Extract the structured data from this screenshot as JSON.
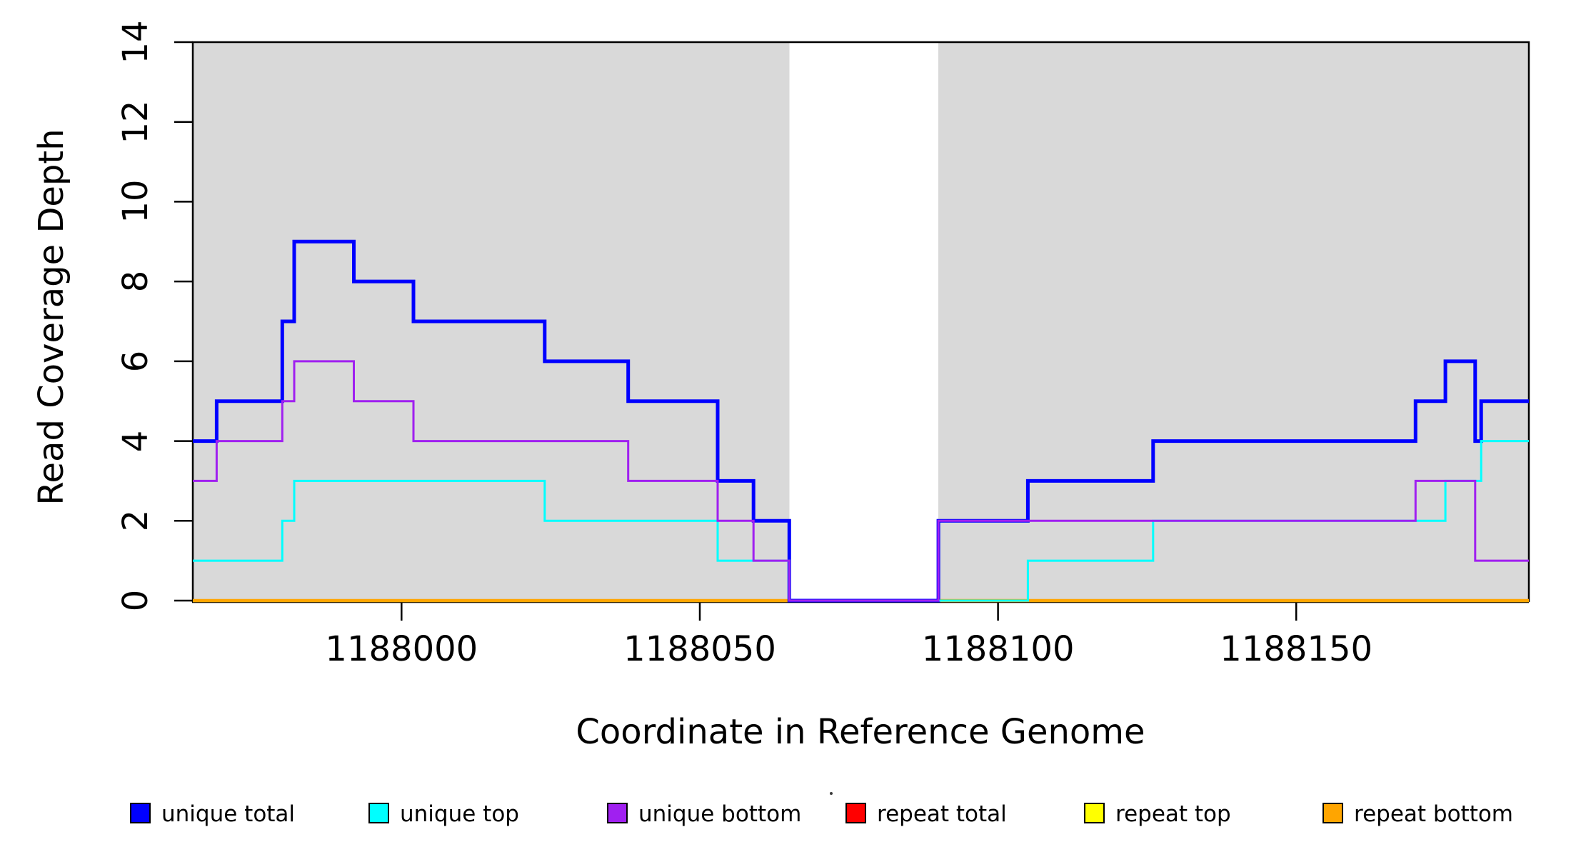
{
  "chart_data": {
    "type": "line",
    "subtype": "step-after",
    "title": "",
    "xlabel": "Coordinate in Reference Genome",
    "ylabel": "Read Coverage Depth",
    "xlim": [
      1187965,
      1188189
    ],
    "ylim": [
      0,
      14
    ],
    "x_ticks": [
      1188000,
      1188050,
      1188100,
      1188150
    ],
    "y_ticks": [
      0,
      2,
      4,
      6,
      8,
      10,
      12,
      14
    ],
    "grid": false,
    "legend_position": "bottom-horizontal",
    "plot_background": "#ffffff",
    "region_color": "#d9d9d9",
    "background_regions": [
      {
        "start": 1187965,
        "end": 1188065
      },
      {
        "start": 1188090,
        "end": 1188189
      }
    ],
    "series": [
      {
        "name": "unique total",
        "color": "#0000ff",
        "width": 5,
        "steps": [
          [
            1187965,
            4
          ],
          [
            1187969,
            5
          ],
          [
            1187980,
            7
          ],
          [
            1187982,
            9
          ],
          [
            1187992,
            8
          ],
          [
            1188002,
            7
          ],
          [
            1188024,
            6
          ],
          [
            1188038,
            5
          ],
          [
            1188053,
            3
          ],
          [
            1188059,
            2
          ],
          [
            1188065,
            0
          ],
          [
            1188090,
            2
          ],
          [
            1188105,
            3
          ],
          [
            1188126,
            4
          ],
          [
            1188170,
            5
          ],
          [
            1188175,
            6
          ],
          [
            1188180,
            4
          ],
          [
            1188181,
            5
          ]
        ]
      },
      {
        "name": "unique top",
        "color": "#00ffff",
        "width": 3,
        "steps": [
          [
            1187965,
            1
          ],
          [
            1187980,
            2
          ],
          [
            1187982,
            3
          ],
          [
            1188024,
            2
          ],
          [
            1188053,
            1
          ],
          [
            1188065,
            0
          ],
          [
            1188105,
            1
          ],
          [
            1188126,
            2
          ],
          [
            1188175,
            3
          ],
          [
            1188181,
            4
          ]
        ]
      },
      {
        "name": "unique bottom",
        "color": "#a020f0",
        "width": 3,
        "steps": [
          [
            1187965,
            3
          ],
          [
            1187969,
            4
          ],
          [
            1187980,
            5
          ],
          [
            1187982,
            6
          ],
          [
            1187992,
            5
          ],
          [
            1188002,
            4
          ],
          [
            1188038,
            3
          ],
          [
            1188053,
            2
          ],
          [
            1188059,
            1
          ],
          [
            1188065,
            0
          ],
          [
            1188090,
            2
          ],
          [
            1188170,
            3
          ],
          [
            1188180,
            1
          ]
        ]
      },
      {
        "name": "repeat total",
        "color": "#ff0000",
        "width": 3.5,
        "steps": [
          [
            1187965,
            0
          ]
        ]
      },
      {
        "name": "repeat top",
        "color": "#ffff00",
        "width": 3.5,
        "steps": [
          [
            1187965,
            0
          ]
        ]
      },
      {
        "name": "repeat bottom",
        "color": "#ffa500",
        "width": 4.5,
        "steps": [
          [
            1187965,
            0
          ]
        ]
      }
    ],
    "draw_order": [
      "repeat total",
      "repeat top",
      "repeat bottom",
      "unique total",
      "unique top",
      "unique bottom"
    ]
  },
  "legend": {
    "items": [
      {
        "label": "unique total",
        "color": "#0000ff"
      },
      {
        "label": "unique top",
        "color": "#00ffff"
      },
      {
        "label": "unique bottom",
        "color": "#a020f0"
      },
      {
        "label": "repeat total",
        "color": "#ff0000"
      },
      {
        "label": "repeat top",
        "color": "#ffff00"
      },
      {
        "label": "repeat bottom",
        "color": "#ffa500"
      }
    ]
  }
}
